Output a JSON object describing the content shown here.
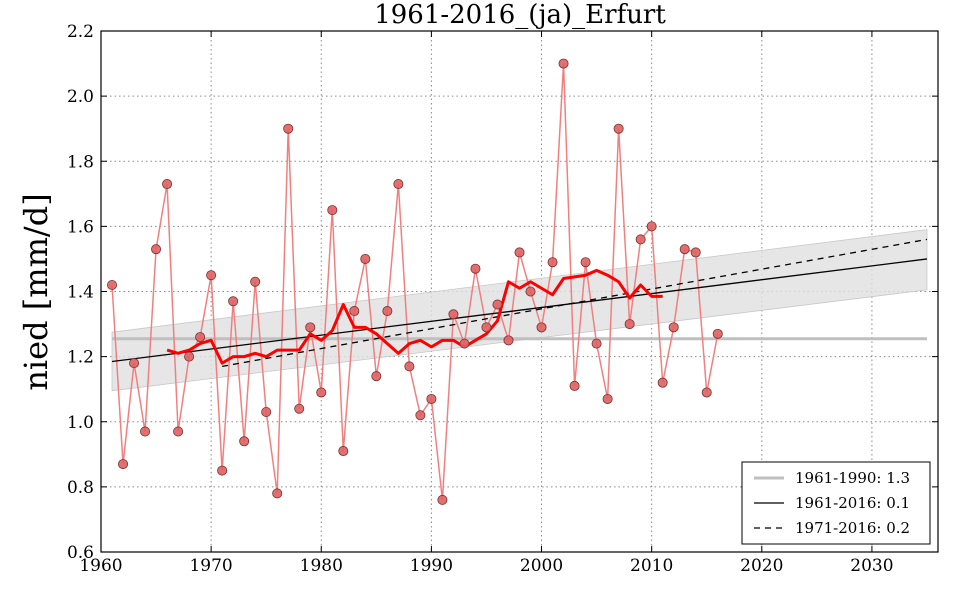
{
  "chart_data": {
    "type": "line",
    "title": "1961-2016_(ja)_Erfurt",
    "xlabel": "",
    "ylabel": "nied [mm/d]",
    "xlim": [
      1960,
      2036
    ],
    "ylim": [
      0.6,
      2.2
    ],
    "x_ticks": [
      1960,
      1970,
      1980,
      1990,
      2000,
      2010,
      2020,
      2030
    ],
    "y_ticks": [
      "0.6",
      "0.8",
      "1.0",
      "1.2",
      "1.4",
      "1.6",
      "1.8",
      "2.0",
      "2.2"
    ],
    "grid": true,
    "legend_location": "bottom-right",
    "colors": {
      "annual_line": "#f08080",
      "annual_marker": "#e06060",
      "moving_average": "#ff0000",
      "baseline": "#bfbfbf",
      "trend": "#000000",
      "confidence_band": "#e0e0e0"
    },
    "series": [
      {
        "name": "annual",
        "x": [
          1961,
          1962,
          1963,
          1964,
          1965,
          1966,
          1967,
          1968,
          1969,
          1970,
          1971,
          1972,
          1973,
          1974,
          1975,
          1976,
          1977,
          1978,
          1979,
          1980,
          1981,
          1982,
          1983,
          1984,
          1985,
          1986,
          1987,
          1988,
          1989,
          1990,
          1991,
          1992,
          1993,
          1994,
          1995,
          1996,
          1997,
          1998,
          1999,
          2000,
          2001,
          2002,
          2003,
          2004,
          2005,
          2006,
          2007,
          2008,
          2009,
          2010,
          2011,
          2012,
          2013,
          2014,
          2015,
          2016
        ],
        "values": [
          1.42,
          0.87,
          1.18,
          0.97,
          1.53,
          1.73,
          0.97,
          1.2,
          1.26,
          1.45,
          0.85,
          1.37,
          0.94,
          1.43,
          1.03,
          0.78,
          1.9,
          1.04,
          1.29,
          1.09,
          1.65,
          0.91,
          1.34,
          1.5,
          1.14,
          1.34,
          1.73,
          1.17,
          1.02,
          1.07,
          0.76,
          1.33,
          1.24,
          1.47,
          1.29,
          1.36,
          1.25,
          1.52,
          1.4,
          1.29,
          1.49,
          2.1,
          1.11,
          1.49,
          1.24,
          1.07,
          1.9,
          1.3,
          1.56,
          1.6,
          1.12,
          1.29,
          1.53,
          1.52,
          1.09,
          1.27
        ]
      },
      {
        "name": "moving_average",
        "x": [
          1966,
          1967,
          1968,
          1969,
          1970,
          1971,
          1972,
          1973,
          1974,
          1975,
          1976,
          1977,
          1978,
          1979,
          1980,
          1981,
          1982,
          1983,
          1984,
          1985,
          1986,
          1987,
          1988,
          1989,
          1990,
          1991,
          1992,
          1993,
          1994,
          1995,
          1996,
          1997,
          1998,
          1999,
          2000,
          2001,
          2002,
          2003,
          2004,
          2005,
          2006,
          2007,
          2008,
          2009,
          2010,
          2011
        ],
        "values": [
          1.22,
          1.21,
          1.22,
          1.24,
          1.25,
          1.18,
          1.2,
          1.2,
          1.21,
          1.2,
          1.22,
          1.22,
          1.22,
          1.27,
          1.25,
          1.28,
          1.36,
          1.29,
          1.29,
          1.27,
          1.24,
          1.21,
          1.24,
          1.25,
          1.23,
          1.25,
          1.25,
          1.23,
          1.25,
          1.27,
          1.31,
          1.43,
          1.41,
          1.43,
          1.41,
          1.39,
          1.44,
          1.445,
          1.45,
          1.465,
          1.45,
          1.43,
          1.38,
          1.42,
          1.385,
          1.385
        ]
      },
      {
        "name": "1961-1990: 1.3",
        "kind": "baseline",
        "x": [
          1961,
          2035
        ],
        "values": [
          1.255,
          1.255
        ]
      },
      {
        "name": "1961-2016: 0.1",
        "kind": "trend",
        "x": [
          1961,
          2035
        ],
        "values": [
          1.185,
          1.5
        ],
        "band_lower": [
          1.095,
          1.405
        ],
        "band_upper": [
          1.275,
          1.59
        ]
      },
      {
        "name": "1971-2016: 0.2",
        "kind": "trend-dashed",
        "x": [
          1971,
          2035
        ],
        "values": [
          1.17,
          1.56
        ]
      }
    ],
    "legend": [
      {
        "label": "1961-1990: 1.3",
        "style": "baseline"
      },
      {
        "label": "1961-2016: 0.1",
        "style": "solid"
      },
      {
        "label": "1971-2016: 0.2",
        "style": "dashed"
      }
    ]
  }
}
